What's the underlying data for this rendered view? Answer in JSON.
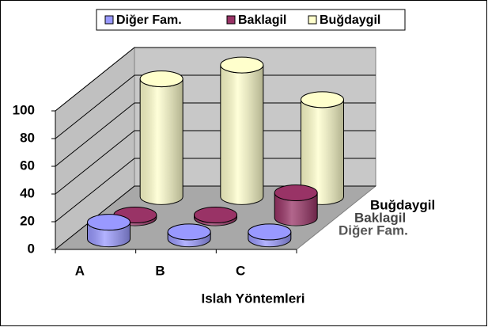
{
  "chart_data": {
    "type": "bar3d",
    "x_label": "Islah Yöntemleri",
    "categories": [
      "A",
      "B",
      "C"
    ],
    "series": [
      {
        "name": "Diğer Fam.",
        "color": "#9999ff",
        "values": [
          12,
          5,
          5
        ]
      },
      {
        "name": "Baklagil",
        "color": "#993366",
        "values": [
          2,
          2,
          18
        ]
      },
      {
        "name": "Buğdaygil",
        "color": "#ffffcc",
        "values": [
          85,
          95,
          70
        ]
      }
    ],
    "ylim": [
      0,
      100
    ],
    "yticks": [
      0,
      20,
      40,
      60,
      80,
      100
    ],
    "grid": true,
    "legend": "top"
  }
}
